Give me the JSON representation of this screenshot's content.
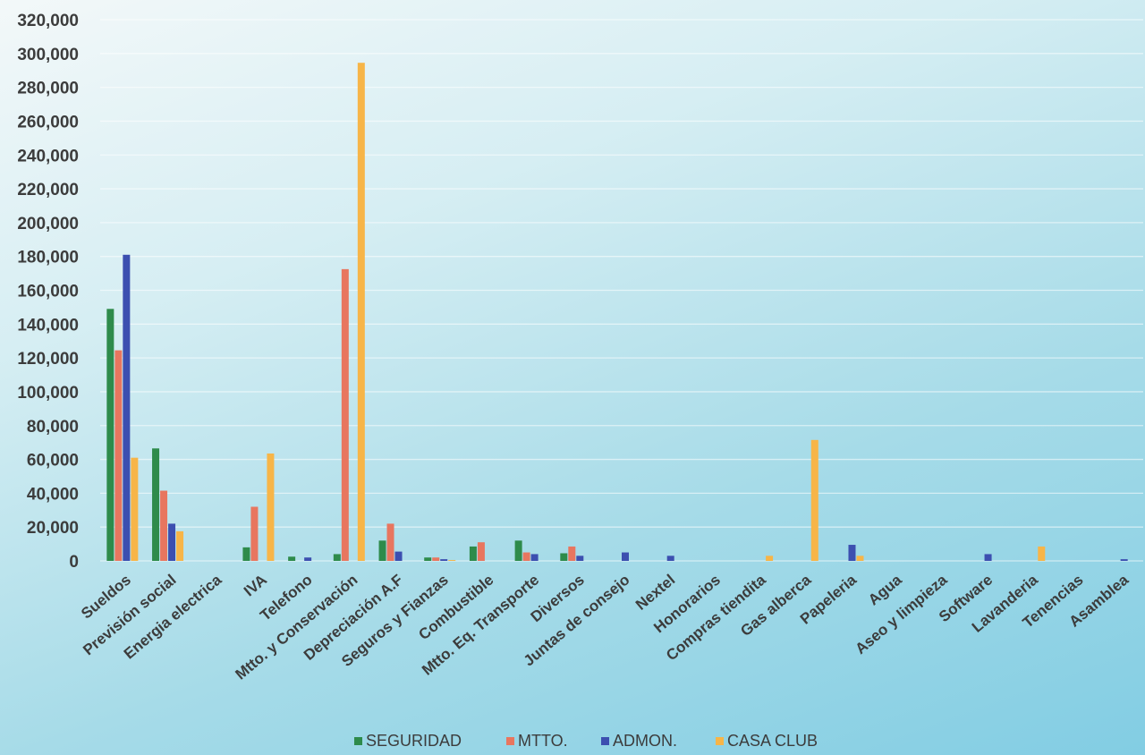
{
  "chart_data": {
    "type": "bar",
    "title": "",
    "xlabel": "",
    "ylabel": "",
    "ylim": [
      0,
      320000
    ],
    "yticks": [
      "320,000",
      "300,000",
      "280,000",
      "260,000",
      "240,000",
      "220,000",
      "200,000",
      "180,000",
      "160,000",
      "140,000",
      "120,000",
      "100,000",
      "80,000",
      "60,000",
      "40,000",
      "20,000",
      "0"
    ],
    "grid": true,
    "legend_position": "bottom",
    "categories": [
      "Sueldos",
      "Previsión social",
      "Energia electrica",
      "IVA",
      "Telefono",
      "Mtto. y Conservación",
      "Depreciación A.F",
      "Seguros y Fianzas",
      "Combustible",
      "Mtto. Eq. Transporte",
      "Diversos",
      "Juntas de consejo",
      "Nextel",
      "Honorarios",
      "Compras tiendita",
      "Gas alberca",
      "Papeleria",
      "Agua",
      "Aseo y limpieza",
      "Software",
      "Lavanderia",
      "Tenencias",
      "Asamblea"
    ],
    "series": [
      {
        "name": "SEGURIDAD",
        "color": "#2e8b4b",
        "values": [
          149000,
          66500,
          0,
          8000,
          2500,
          4000,
          12000,
          2000,
          8500,
          12000,
          4500,
          0,
          0,
          0,
          0,
          0,
          0,
          0,
          0,
          0,
          0,
          0,
          0
        ]
      },
      {
        "name": "MTTO.",
        "color": "#e8765f",
        "values": [
          124500,
          41500,
          0,
          32000,
          0,
          172500,
          22000,
          2000,
          11000,
          5000,
          8500,
          0,
          0,
          0,
          0,
          0,
          0,
          0,
          0,
          0,
          0,
          0,
          0
        ]
      },
      {
        "name": "ADMON.",
        "color": "#3c4fb0",
        "values": [
          181000,
          22000,
          0,
          0,
          2000,
          0,
          5500,
          1000,
          0,
          4000,
          3000,
          5000,
          3000,
          0,
          0,
          0,
          9500,
          0,
          0,
          4000,
          0,
          0,
          1000
        ]
      },
      {
        "name": "CASA CLUB",
        "color": "#f7b548",
        "values": [
          61000,
          17500,
          0,
          63500,
          0,
          294500,
          0,
          500,
          0,
          0,
          0,
          0,
          0,
          0,
          3000,
          71500,
          3000,
          0,
          0,
          0,
          8500,
          0,
          0
        ]
      }
    ]
  }
}
